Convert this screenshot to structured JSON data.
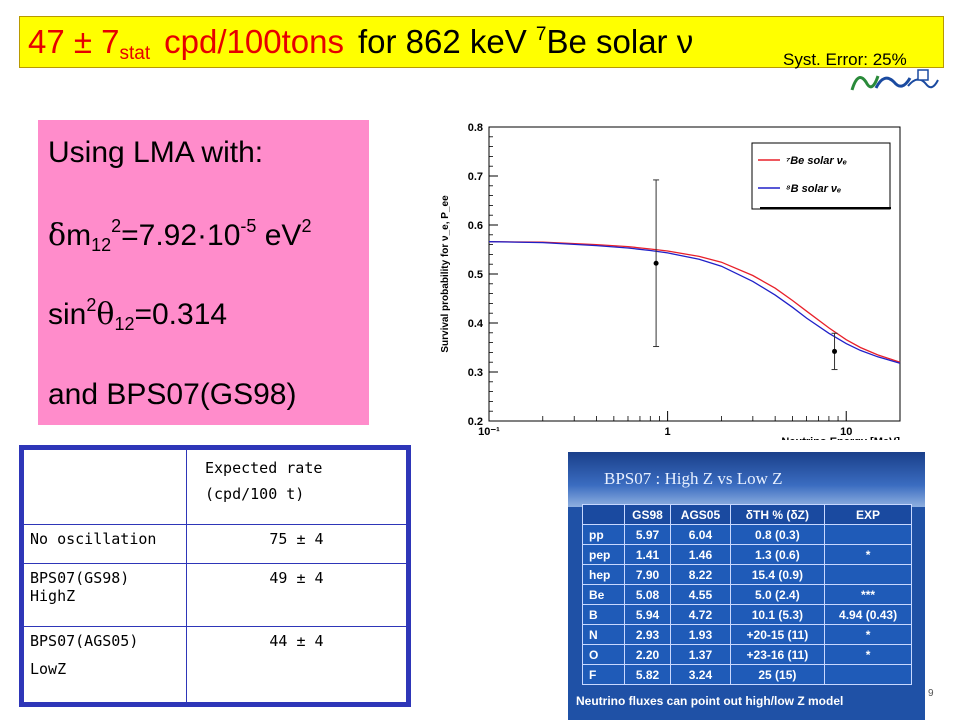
{
  "banner": {
    "rate": "47 ± 7",
    "rate_sub": "stat",
    "rate_unit": "cpd/100tons",
    "for_text": "for 862 keV",
    "isotope_mass": "7",
    "isotope_rest": "Be solar ν",
    "syst_error": "Syst. Error: 25%"
  },
  "lma": {
    "heading": "Using LMA with:",
    "dm_delta": "δ",
    "dm_m": "m",
    "dm_sub": "12",
    "dm_exp": "2",
    "dm_value": "=7.92·10",
    "dm_value_exp": "-5",
    "dm_unit": " eV",
    "dm_unit_exp": "2",
    "sin_label": "sin",
    "sin_exp": "2",
    "sin_theta": "θ",
    "sin_sub": "12",
    "sin_value": "=0.314",
    "model": "and BPS07(GS98)"
  },
  "rate_table": {
    "header_line1": "Expected rate",
    "header_line2": "(cpd/100 t)",
    "rows": [
      {
        "label_line1": "No oscillation",
        "label_line2": "",
        "value": "75 ± 4"
      },
      {
        "label_line1": "BPS07(GS98)",
        "label_line2": "HighZ",
        "value": "49 ±  4"
      },
      {
        "label_line1": "BPS07(AGS05)",
        "label_line2": "LowZ",
        "value": "44 ±  4"
      }
    ]
  },
  "inset_table": {
    "title": "BPS07 : High Z vs Low Z",
    "headers": [
      "",
      "GS98",
      "AGS05",
      "δTH % (δZ)",
      "EXP"
    ],
    "rows": [
      [
        "pp",
        "5.97",
        "6.04",
        "0.8 (0.3)",
        ""
      ],
      [
        "pep",
        "1.41",
        "1.46",
        "1.3 (0.6)",
        "*"
      ],
      [
        "hep",
        "7.90",
        "8.22",
        "15.4 (0.9)",
        ""
      ],
      [
        "Be",
        "5.08",
        "4.55",
        "5.0 (2.4)",
        "***"
      ],
      [
        "B",
        "5.94",
        "4.72",
        "10.1 (5.3)",
        "4.94 (0.43)"
      ],
      [
        "N",
        "2.93",
        "1.93",
        "+20-15 (11)",
        "*"
      ],
      [
        "O",
        "2.20",
        "1.37",
        "+23-16 (11)",
        "*"
      ],
      [
        "F",
        "5.82",
        "3.24",
        "25 (15)",
        ""
      ]
    ],
    "footer": "Neutrino fluxes can point out high/low Z model"
  },
  "page_number": "9",
  "chart_data": {
    "type": "line",
    "xlabel": "Neutrino Energy [MeV]",
    "ylabel": "Survival probability for ν_e, P_ee",
    "x_scale": "log",
    "xlim": [
      0.1,
      20
    ],
    "ylim": [
      0.2,
      0.8
    ],
    "x_ticks": [
      0.1,
      1,
      10
    ],
    "x_tick_labels": [
      "10⁻¹",
      "1",
      "10"
    ],
    "y_ticks": [
      0.2,
      0.3,
      0.4,
      0.5,
      0.6,
      0.7,
      0.8
    ],
    "y_tick_labels": [
      "0.2",
      "0.3",
      "0.4",
      "0.5",
      "0.6",
      "0.7",
      "0.8"
    ],
    "grid": false,
    "legend_position": "top-right",
    "series": [
      {
        "name": "⁷Be solar νₑ",
        "color": "#e8202a",
        "x": [
          0.1,
          0.2,
          0.4,
          0.6,
          0.8,
          1.0,
          1.5,
          2.0,
          3.0,
          4.0,
          5.0,
          6.0,
          8.0,
          10.0,
          12.0,
          15.0,
          20.0
        ],
        "y": [
          0.566,
          0.565,
          0.56,
          0.556,
          0.551,
          0.547,
          0.536,
          0.524,
          0.497,
          0.471,
          0.446,
          0.424,
          0.39,
          0.366,
          0.35,
          0.335,
          0.32
        ]
      },
      {
        "name": "⁸B solar νₑ",
        "color": "#2020c8",
        "x": [
          0.1,
          0.2,
          0.4,
          0.6,
          0.8,
          1.0,
          1.5,
          2.0,
          3.0,
          4.0,
          5.0,
          6.0,
          8.0,
          10.0,
          12.0,
          15.0,
          20.0
        ],
        "y": [
          0.566,
          0.564,
          0.558,
          0.553,
          0.548,
          0.543,
          0.53,
          0.516,
          0.485,
          0.457,
          0.432,
          0.41,
          0.379,
          0.358,
          0.344,
          0.331,
          0.318
        ]
      }
    ],
    "points": [
      {
        "x": 0.862,
        "y": 0.522,
        "yerr": 0.17
      },
      {
        "x": 8.6,
        "y": 0.342,
        "yerr": 0.037
      }
    ]
  }
}
